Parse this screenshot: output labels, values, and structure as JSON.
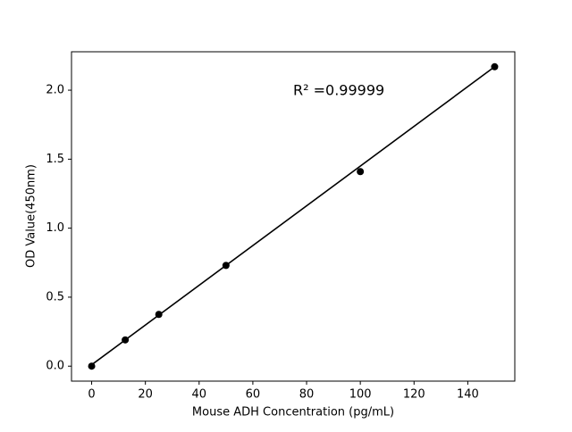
{
  "chart_data": {
    "type": "scatter",
    "xlabel": "Mouse ADH Concentration (pg/mL)",
    "ylabel": "OD Value(450nm)",
    "annotation": "R² =0.99999",
    "xlim": [
      -7.5,
      157.5
    ],
    "ylim": [
      -0.1085,
      2.2785
    ],
    "xticks": [
      0,
      20,
      40,
      60,
      80,
      100,
      120,
      140
    ],
    "yticks": [
      {
        "value": 0,
        "label": "0.0"
      },
      0.5,
      {
        "value": 1,
        "label": "1.0"
      },
      1.5,
      {
        "value": 2,
        "label": "2.0"
      }
    ],
    "series": [
      {
        "color": "#000000",
        "mode": "markers",
        "x": [
          0,
          12.5,
          25,
          50,
          100,
          150
        ],
        "values": [
          0.0,
          0.19,
          0.375,
          0.73,
          1.41,
          2.17
        ]
      },
      {
        "color": "#000000",
        "mode": "line",
        "x": [
          0,
          150
        ],
        "values": [
          0.01,
          2.17
        ]
      }
    ]
  }
}
